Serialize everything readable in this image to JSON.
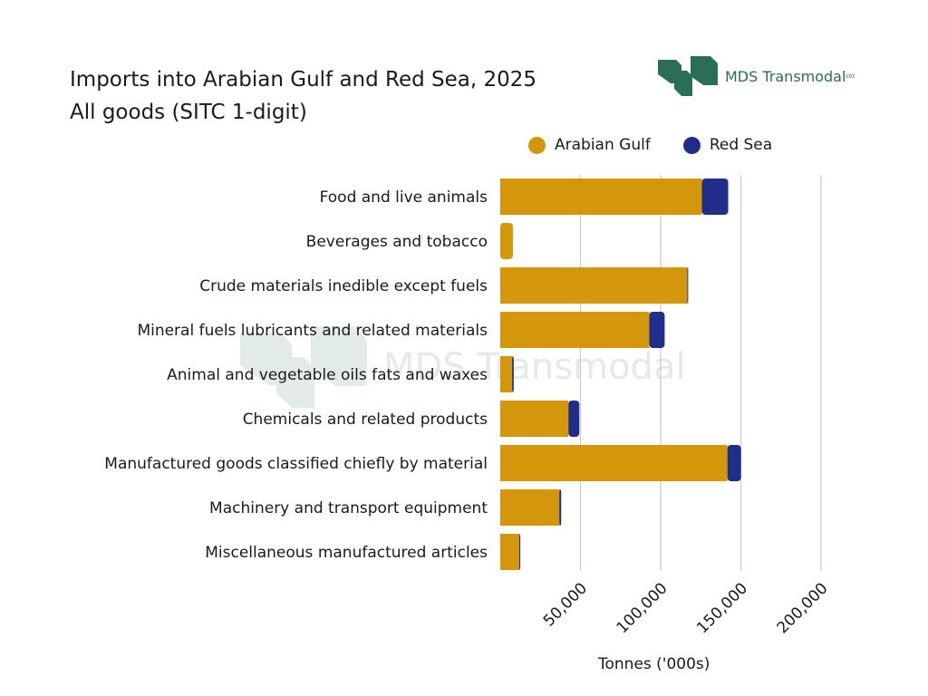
{
  "chart_data": {
    "type": "bar",
    "orientation": "horizontal",
    "stacked": true,
    "title": "Imports into Arabian Gulf and Red Sea, 2025",
    "subtitle": "All goods (SITC 1-digit)",
    "xlabel": "Tonnes ('000s)",
    "ylabel": "",
    "xlim": [
      0,
      200000
    ],
    "xticks": [
      50000,
      100000,
      150000,
      200000
    ],
    "xtick_labels": [
      "50,000",
      "100,000",
      "150,000",
      "200,000"
    ],
    "grid": true,
    "legend_position": "top-right",
    "categories": [
      "Food and live animals",
      "Beverages and tobacco",
      "Crude materials inedible except fuels",
      "Mineral fuels lubricants and related materials",
      "Animal and vegetable oils fats and waxes",
      "Chemicals and related products",
      "Manufactured goods classified chiefly by material",
      "Machinery and transport equipment",
      "Miscellaneous manufactured articles"
    ],
    "series": [
      {
        "name": "Arabian Gulf",
        "color": "#D4960A",
        "values": [
          125700,
          7900,
          116600,
          92900,
          7400,
          42500,
          141600,
          36800,
          11900
        ]
      },
      {
        "name": "Red Sea",
        "color": "#1F2E8A",
        "values": [
          16400,
          0,
          500,
          9600,
          1000,
          6800,
          8500,
          1200,
          600
        ]
      }
    ]
  },
  "logo": {
    "text": "MDS Transmodal",
    "suffix": "Ltd"
  }
}
